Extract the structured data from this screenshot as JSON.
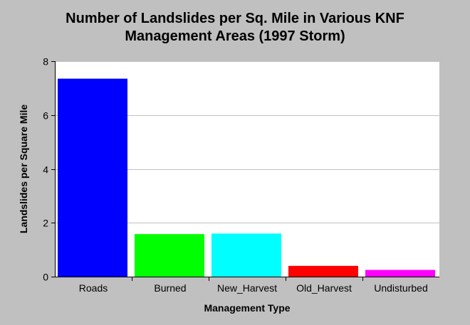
{
  "chart_data": {
    "type": "bar",
    "title_line1": "Number of Landslides per Sq. Mile in Various KNF",
    "title_line2": "Management Areas (1997 Storm)",
    "xlabel": "Management Type",
    "ylabel": "Landslides per Square Mile",
    "categories": [
      "Roads",
      "Burned",
      "New_Harvest",
      "Old_Harvest",
      "Undisturbed"
    ],
    "values": [
      7.35,
      1.58,
      1.6,
      0.4,
      0.25
    ],
    "colors": [
      "#0000ff",
      "#00ff00",
      "#00ffff",
      "#ff0000",
      "#ff00ff"
    ],
    "ylim": [
      0,
      8
    ],
    "yticks": [
      0,
      2,
      4,
      6,
      8
    ],
    "grid": true,
    "plot_background": "#ffffff",
    "gridline_color": "#c0c0c0"
  }
}
